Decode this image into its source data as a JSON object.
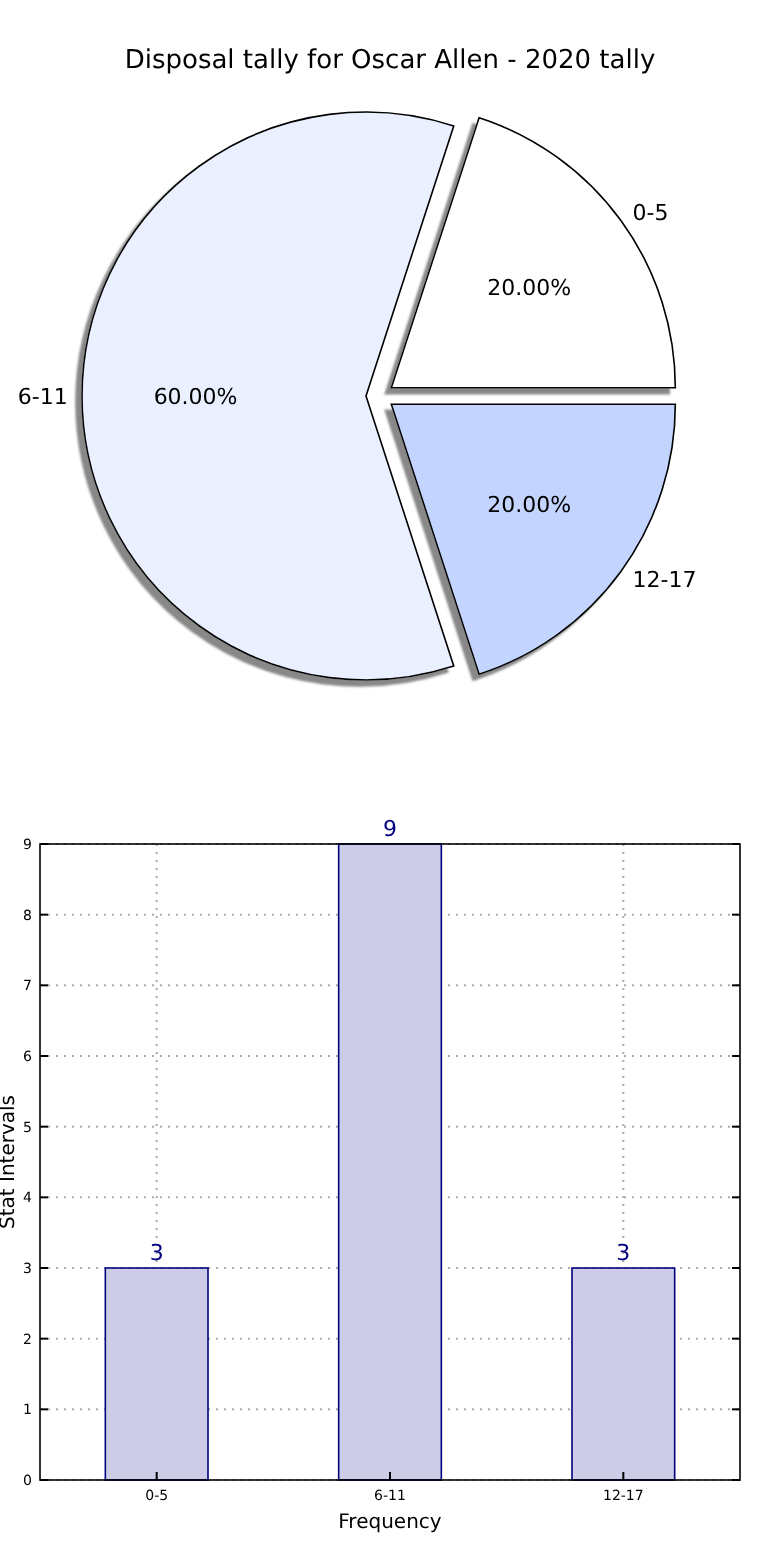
{
  "chart_data": [
    {
      "type": "pie",
      "title": "Disposal tally for Oscar Allen - 2020 tally",
      "categories": [
        "0-5",
        "6-11",
        "12-17"
      ],
      "values": [
        20,
        60,
        20
      ],
      "colors": [
        "#ffffff",
        "#eaf0ff",
        "#c3d5ff"
      ],
      "value_labels": [
        "20.00%",
        "60.00%",
        "20.00%"
      ]
    },
    {
      "type": "bar",
      "categories": [
        "0-5",
        "6-11",
        "12-17"
      ],
      "values": [
        3,
        9,
        3
      ],
      "color": "#cccce6",
      "xlabel": "Frequency",
      "ylabel": "Stat Intervals",
      "ylim": [
        0,
        9
      ],
      "yticks": [
        0,
        1,
        2,
        3,
        4,
        5,
        6,
        7,
        8,
        9
      ],
      "grid": true,
      "data_labels": true
    }
  ]
}
